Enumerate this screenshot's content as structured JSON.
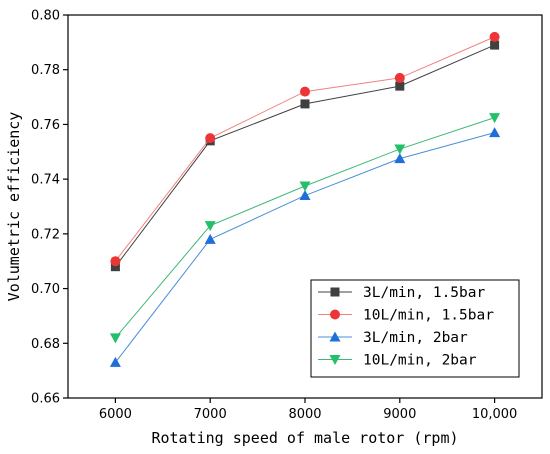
{
  "chart_data": {
    "type": "line",
    "xlabel": "Rotating speed of male rotor (rpm)",
    "ylabel": "Volumetric efficiency",
    "x": [
      6000,
      7000,
      8000,
      9000,
      10000
    ],
    "x_tick_labels": [
      "6000",
      "7000",
      "8000",
      "9000",
      "10,000"
    ],
    "xlim": [
      5500,
      10500
    ],
    "ylim": [
      0.66,
      0.8
    ],
    "y_ticks": [
      0.66,
      0.68,
      0.7,
      0.72,
      0.74,
      0.76,
      0.78,
      0.8
    ],
    "y_tick_labels": [
      "0.66",
      "0.68",
      "0.70",
      "0.72",
      "0.74",
      "0.76",
      "0.78",
      "0.80"
    ],
    "grid": false,
    "legend_position": "bottom-right",
    "series": [
      {
        "name": "3L/min, 1.5bar",
        "values": [
          0.708,
          0.754,
          0.7675,
          0.774,
          0.789
        ],
        "color": "#404040",
        "marker_color": "#404040",
        "marker": "square"
      },
      {
        "name": "10L/min, 1.5bar",
        "values": [
          0.71,
          0.755,
          0.772,
          0.777,
          0.792
        ],
        "color": "#f08080",
        "marker_color": "#ee3535",
        "marker": "circle"
      },
      {
        "name": "3L/min, 2bar",
        "values": [
          0.673,
          0.718,
          0.734,
          0.7475,
          0.757
        ],
        "color": "#4a90d9",
        "marker_color": "#1e6fd9",
        "marker": "triangle-up"
      },
      {
        "name": "10L/min, 2bar",
        "values": [
          0.682,
          0.723,
          0.7375,
          0.751,
          0.7625
        ],
        "color": "#3cb878",
        "marker_color": "#22c06a",
        "marker": "triangle-down"
      }
    ]
  }
}
